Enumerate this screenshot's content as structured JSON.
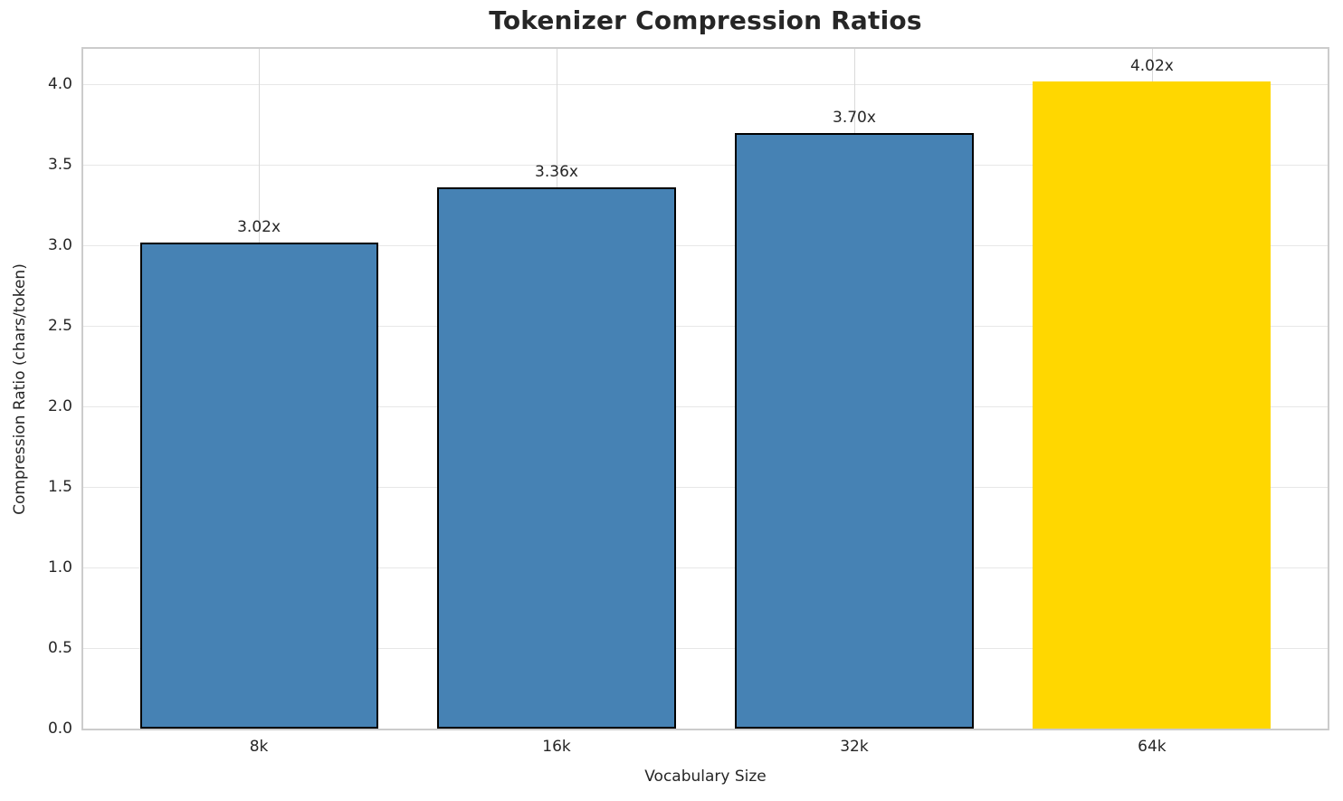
{
  "chart_data": {
    "type": "bar",
    "title": "Tokenizer Compression Ratios",
    "xlabel": "Vocabulary Size",
    "ylabel": "Compression Ratio (chars/token)",
    "categories": [
      "8k",
      "16k",
      "32k",
      "64k"
    ],
    "values": [
      3.02,
      3.36,
      3.7,
      4.02
    ],
    "bar_labels": [
      "3.02x",
      "3.36x",
      "3.70x",
      "4.02x"
    ],
    "bar_colors": [
      "#4682b4",
      "#4682b4",
      "#4682b4",
      "#ffd700"
    ],
    "bar_edges": [
      true,
      true,
      true,
      false
    ],
    "yticks": [
      0.0,
      0.5,
      1.0,
      1.5,
      2.0,
      2.5,
      3.0,
      3.5,
      4.0
    ],
    "ytick_labels": [
      "0.0",
      "0.5",
      "1.0",
      "1.5",
      "2.0",
      "2.5",
      "3.0",
      "3.5",
      "4.0"
    ],
    "ylim": [
      0,
      4.22
    ],
    "xlim": [
      -0.59,
      3.59
    ],
    "bar_width_units": 0.8,
    "grid": true,
    "legend": "none",
    "highlight_index": 3,
    "colors": {
      "bar_default": "#4682b4",
      "bar_highlight": "#ffd700",
      "bar_edge": "#000000",
      "text": "#262626",
      "spine": "#cccccc",
      "hgrid": "#e7e7e7",
      "vgrid": "#d9d9d9"
    }
  }
}
